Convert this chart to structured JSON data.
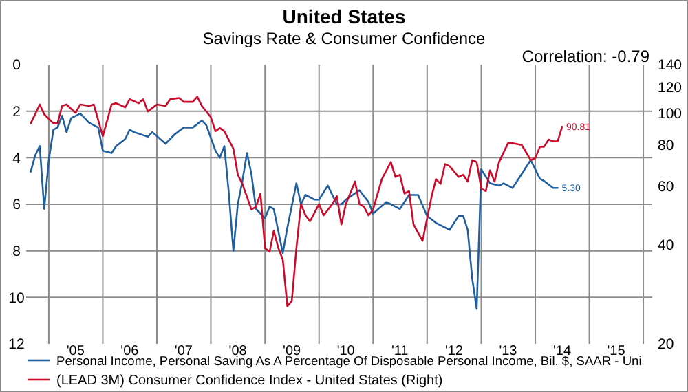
{
  "chart_data": {
    "type": "line",
    "title": "United States",
    "subtitle": "Savings Rate & Consumer Confidence",
    "annotations": [
      "Correlation: -0.79"
    ],
    "xlim": [
      "2004-08",
      "2016-03"
    ],
    "xticks": [
      {
        "value": "2005-01",
        "label": null
      },
      {
        "value": "2005-07",
        "label": "'05"
      },
      {
        "value": "2006-01",
        "label": null
      },
      {
        "value": "2006-07",
        "label": "'06"
      },
      {
        "value": "2007-01",
        "label": null
      },
      {
        "value": "2007-07",
        "label": "'07"
      },
      {
        "value": "2008-01",
        "label": null
      },
      {
        "value": "2008-07",
        "label": "'08"
      },
      {
        "value": "2009-01",
        "label": null
      },
      {
        "value": "2009-07",
        "label": "'09"
      },
      {
        "value": "2010-01",
        "label": null
      },
      {
        "value": "2010-07",
        "label": "'10"
      },
      {
        "value": "2011-01",
        "label": null
      },
      {
        "value": "2011-07",
        "label": "'11"
      },
      {
        "value": "2012-01",
        "label": null
      },
      {
        "value": "2012-07",
        "label": "'12"
      },
      {
        "value": "2013-01",
        "label": null
      },
      {
        "value": "2013-07",
        "label": "'13"
      },
      {
        "value": "2014-01",
        "label": null
      },
      {
        "value": "2014-07",
        "label": "'14"
      },
      {
        "value": "2015-01",
        "label": null
      },
      {
        "value": "2015-07",
        "label": "'15"
      },
      {
        "value": "2016-01",
        "label": null
      }
    ],
    "ylim": [
      12,
      0
    ],
    "yticks": [
      0,
      2,
      4,
      6,
      8,
      10,
      12
    ],
    "y2lim": [
      20,
      140
    ],
    "y2ticks": [
      20,
      40,
      60,
      80,
      100,
      120,
      140
    ],
    "log": "y2",
    "grid": true,
    "legend": "bottom",
    "series": [
      {
        "name": "Personal Income, Personal Saving As A Percentage Of Disposable Personal Income, Bil. $, SAAR - Uni",
        "color": "#1f5fa0",
        "x": [
          "2004-09",
          "2004-10",
          "2004-11",
          "2004-12",
          "2005-01",
          "2005-02",
          "2005-03",
          "2005-04",
          "2005-05",
          "2005-06",
          "2005-08",
          "2005-09",
          "2005-10",
          "2005-12",
          "2006-01",
          "2006-03",
          "2006-04",
          "2006-06",
          "2006-07",
          "2006-08",
          "2006-11",
          "2006-12",
          "2007-03",
          "2007-05",
          "2007-07",
          "2007-09",
          "2007-11",
          "2007-12",
          "2008-02",
          "2008-03",
          "2008-04",
          "2008-05",
          "2008-06",
          "2008-07",
          "2008-08",
          "2008-09",
          "2008-10",
          "2008-11",
          "2009-01",
          "2009-02",
          "2009-03",
          "2009-05",
          "2009-06",
          "2009-08",
          "2009-09",
          "2009-10",
          "2009-12",
          "2010-01",
          "2010-03",
          "2010-05",
          "2010-06",
          "2010-07",
          "2010-10",
          "2010-12",
          "2011-01",
          "2011-04",
          "2011-07",
          "2011-09",
          "2011-11",
          "2012-01",
          "2012-03",
          "2012-06",
          "2012-08",
          "2012-09",
          "2012-10",
          "2012-11",
          "2012-12",
          "2013-01",
          "2013-03",
          "2013-05",
          "2013-06",
          "2013-08",
          "2013-10",
          "2013-12",
          "2014-02",
          "2014-03",
          "2014-05",
          "2014-06"
        ],
        "values": [
          4.6,
          3.9,
          3.5,
          6.2,
          4.1,
          2.8,
          2.7,
          2.2,
          2.9,
          2.3,
          2.1,
          2.3,
          2.5,
          2.7,
          3.7,
          3.8,
          3.5,
          3.2,
          2.8,
          2.9,
          3.1,
          2.9,
          3.4,
          3.0,
          2.7,
          2.7,
          2.4,
          2.6,
          3.7,
          4.0,
          3.5,
          5.5,
          8.0,
          6.0,
          5.0,
          3.8,
          4.7,
          6.2,
          6.6,
          6.1,
          6.2,
          8.1,
          7.0,
          5.1,
          6.0,
          5.6,
          5.8,
          5.8,
          5.2,
          6.0,
          6.0,
          5.8,
          5.4,
          5.9,
          6.4,
          5.9,
          6.2,
          5.6,
          5.6,
          6.5,
          6.8,
          7.1,
          6.5,
          6.5,
          7.1,
          9.2,
          10.5,
          4.5,
          5.1,
          5.2,
          5.1,
          5.3,
          4.7,
          4.1,
          4.9,
          5.0,
          5.3,
          5.3
        ],
        "value_labels": [
          null,
          null,
          null,
          null,
          null,
          null,
          null,
          null,
          null,
          null,
          null,
          null,
          null,
          null,
          null,
          null,
          null,
          null,
          null,
          null,
          null,
          null,
          null,
          null,
          null,
          null,
          null,
          null,
          null,
          null,
          null,
          null,
          null,
          null,
          null,
          null,
          null,
          null,
          null,
          null,
          null,
          null,
          null,
          null,
          null,
          null,
          null,
          null,
          null,
          null,
          null,
          null,
          null,
          null,
          null,
          null,
          null,
          null,
          null,
          null,
          null,
          null,
          null,
          null,
          null,
          null,
          null,
          null,
          null,
          null,
          null,
          null,
          null,
          null,
          null,
          null,
          null,
          "5.30"
        ]
      },
      {
        "name": "(LEAD 3M) Consumer Confidence Index - United States  (Right)",
        "color": "#cc0a2a",
        "axis": "y2",
        "x": [
          "2004-09",
          "2004-11",
          "2004-12",
          "2005-02",
          "2005-03",
          "2005-04",
          "2005-05",
          "2005-07",
          "2005-08",
          "2005-10",
          "2005-11",
          "2006-01",
          "2006-03",
          "2006-04",
          "2006-06",
          "2006-07",
          "2006-09",
          "2006-10",
          "2006-11",
          "2007-01",
          "2007-03",
          "2007-04",
          "2007-06",
          "2007-07",
          "2007-09",
          "2007-10",
          "2007-11",
          "2008-01",
          "2008-02",
          "2008-03",
          "2008-04",
          "2008-06",
          "2008-07",
          "2008-08",
          "2008-10",
          "2008-11",
          "2008-12",
          "2009-01",
          "2009-02",
          "2009-03",
          "2009-04",
          "2009-05",
          "2009-06",
          "2009-07",
          "2009-08",
          "2009-09",
          "2009-10",
          "2009-11",
          "2010-01",
          "2010-02",
          "2010-04",
          "2010-05",
          "2010-06",
          "2010-07",
          "2010-09",
          "2010-10",
          "2010-11",
          "2010-12",
          "2011-01",
          "2011-03",
          "2011-05",
          "2011-06",
          "2011-07",
          "2011-08",
          "2011-09",
          "2011-10",
          "2011-12",
          "2012-02",
          "2012-03",
          "2012-04",
          "2012-05",
          "2012-06",
          "2012-08",
          "2012-09",
          "2012-10",
          "2012-11",
          "2012-12",
          "2013-01",
          "2013-02",
          "2013-03",
          "2013-04",
          "2013-05",
          "2013-07",
          "2013-08",
          "2013-10",
          "2013-12",
          "2014-01",
          "2014-02",
          "2014-03",
          "2014-04",
          "2014-05",
          "2014-06",
          "2014-07"
        ],
        "values": [
          93,
          106,
          99,
          93,
          93,
          105,
          106,
          100,
          106,
          105,
          106,
          85,
          106,
          107,
          104,
          110,
          107,
          110,
          101,
          106,
          105,
          110,
          111,
          108,
          108,
          112,
          105,
          97,
          88,
          90,
          88,
          78,
          65,
          61,
          51,
          52,
          57,
          39,
          38,
          44,
          39,
          36,
          26,
          27,
          39,
          53,
          49,
          47,
          53,
          49,
          53,
          56,
          46,
          53,
          62,
          53,
          52,
          49,
          51,
          63,
          71,
          64,
          65,
          57,
          58,
          46,
          41,
          56,
          63,
          61,
          70,
          69,
          64,
          65,
          62,
          72,
          71,
          59,
          58,
          67,
          62,
          71,
          81,
          81,
          80,
          72,
          73,
          79,
          79,
          83,
          82,
          82,
          90.81
        ],
        "value_labels": [
          null,
          null,
          null,
          null,
          null,
          null,
          null,
          null,
          null,
          null,
          null,
          null,
          null,
          null,
          null,
          null,
          null,
          null,
          null,
          null,
          null,
          null,
          null,
          null,
          null,
          null,
          null,
          null,
          null,
          null,
          null,
          null,
          null,
          null,
          null,
          null,
          null,
          null,
          null,
          null,
          null,
          null,
          null,
          null,
          null,
          null,
          null,
          null,
          null,
          null,
          null,
          null,
          null,
          null,
          null,
          null,
          null,
          null,
          null,
          null,
          null,
          null,
          null,
          null,
          null,
          null,
          null,
          null,
          null,
          null,
          null,
          null,
          null,
          null,
          null,
          null,
          null,
          null,
          null,
          null,
          null,
          null,
          null,
          null,
          null,
          null,
          null,
          null,
          null,
          null,
          null,
          null,
          "90.81"
        ]
      }
    ]
  }
}
